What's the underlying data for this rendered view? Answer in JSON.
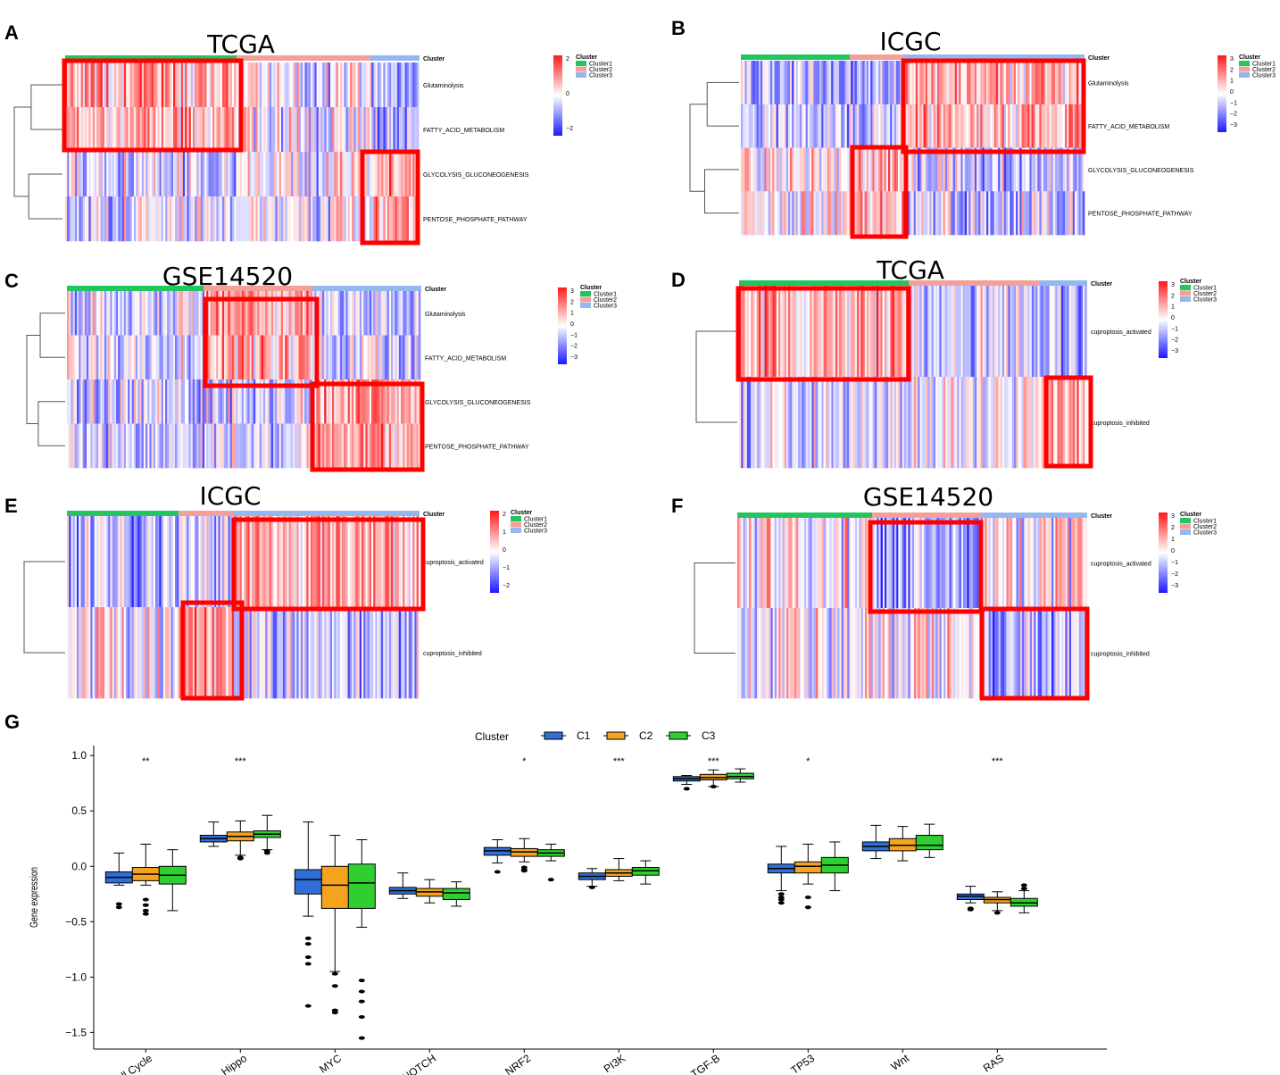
{
  "panels": [
    {
      "id": "A",
      "title": "TCGA",
      "rows": [
        "Glutaminolysis",
        "FATTY_ACID_METABOLISM",
        "GLYCOLYSIS_GLUCONEOGENESIS",
        "PENTOSE_PHOSPHATE_PATHWAY"
      ],
      "cluster_label": "Cluster",
      "legend_title": "Cluster",
      "legend_items": [
        "Cluster1",
        "Cluster2",
        "Cluster3"
      ],
      "scale_ticks": [
        "2",
        "0",
        "−2"
      ]
    },
    {
      "id": "B",
      "title": "ICGC",
      "rows": [
        "Glutaminolysis",
        "FATTY_ACID_METABOLISM",
        "GLYCOLYSIS_GLUCONEOGENESIS",
        "PENTOSE_PHOSPHATE_PATHWAY"
      ],
      "cluster_label": "Cluster",
      "legend_title": "Cluster",
      "legend_items": [
        "Cluster1",
        "Cluster2",
        "Cluster3"
      ],
      "scale_ticks": [
        "3",
        "2",
        "1",
        "0",
        "−1",
        "−2",
        "−3"
      ]
    },
    {
      "id": "C",
      "title": "GSE14520",
      "rows": [
        "Glutaminolysis",
        "FATTY_ACID_METABOLISM",
        "GLYCOLYSIS_GLUCONEOGENESIS",
        "PENTOSE_PHOSPHATE_PATHWAY"
      ],
      "cluster_label": "Cluster",
      "legend_title": "Cluster",
      "legend_items": [
        "Cluster1",
        "Cluster2",
        "Cluster3"
      ],
      "scale_ticks": [
        "3",
        "2",
        "1",
        "0",
        "−1",
        "−2",
        "−3"
      ]
    },
    {
      "id": "D",
      "title": "TCGA",
      "rows": [
        "cuproptosis_activated",
        "cuproptosis_inhibited"
      ],
      "cluster_label": "Cluster",
      "legend_title": "Cluster",
      "legend_items": [
        "Cluster1",
        "Cluster2",
        "Cluster3"
      ],
      "scale_ticks": [
        "3",
        "2",
        "1",
        "0",
        "−1",
        "−2",
        "−3"
      ]
    },
    {
      "id": "E",
      "title": "ICGC",
      "rows": [
        "cuproptosis_activated",
        "cuproptosis_inhibited"
      ],
      "cluster_label": "Cluster",
      "legend_title": "Cluster",
      "legend_items": [
        "Cluster1",
        "Cluster2",
        "Cluster3"
      ],
      "scale_ticks": [
        "2",
        "1",
        "0",
        "−1",
        "−2"
      ]
    },
    {
      "id": "F",
      "title": "GSE14520",
      "rows": [
        "cuproptosis_activated",
        "cuproptosis_inhibited"
      ],
      "cluster_label": "Cluster",
      "legend_title": "Cluster",
      "legend_items": [
        "Cluster1",
        "Cluster2",
        "Cluster3"
      ],
      "scale_ticks": [
        "3",
        "2",
        "1",
        "0",
        "−1",
        "−2",
        "−3"
      ]
    }
  ],
  "colors": {
    "cluster1": "#22c55e",
    "cluster2": "#f4a09a",
    "cluster3": "#93b8f0",
    "heat_high": "#ff1a1a",
    "heat_mid": "#ffffff",
    "heat_low": "#1a1aff",
    "highlight": "#ff0000",
    "c1": "#2f6fd6",
    "c2": "#f5a21f",
    "c3": "#2fcf2f"
  },
  "chart_data": {
    "panel": "G",
    "type": "box",
    "legend_title": "Cluster",
    "series_names": [
      "C1",
      "C2",
      "C3"
    ],
    "ylabel": "Gene expression",
    "ylim": [
      -1.65,
      1.05
    ],
    "yticks": [
      "1.0",
      "0.5",
      "0.0",
      "−0.5",
      "−1.0",
      "−1.5"
    ],
    "categories": [
      "Cell Cycle",
      "Hippo",
      "MYC",
      "NOTCH",
      "NRF2",
      "PI3K",
      "TGF-B",
      "TP53",
      "Wnt",
      "RAS"
    ],
    "significance": [
      "**",
      "***",
      "",
      "",
      "*",
      "***",
      "***",
      "*",
      "",
      "***"
    ],
    "boxes": [
      [
        [
          -0.17,
          -0.15,
          -0.1,
          -0.05,
          0.12
        ],
        [
          -0.17,
          -0.13,
          -0.07,
          -0.01,
          0.2
        ],
        [
          -0.4,
          -0.16,
          -0.08,
          0.0,
          0.15
        ]
      ],
      [
        [
          0.18,
          0.22,
          0.25,
          0.28,
          0.4
        ],
        [
          0.1,
          0.23,
          0.27,
          0.31,
          0.41
        ],
        [
          0.15,
          0.26,
          0.29,
          0.32,
          0.46
        ]
      ],
      [
        [
          -0.45,
          -0.25,
          -0.12,
          -0.03,
          0.4
        ],
        [
          -0.95,
          -0.38,
          -0.17,
          0.0,
          0.28
        ],
        [
          -0.55,
          -0.38,
          -0.15,
          0.02,
          0.24
        ]
      ],
      [
        [
          -0.29,
          -0.25,
          -0.22,
          -0.19,
          -0.06
        ],
        [
          -0.33,
          -0.27,
          -0.23,
          -0.2,
          -0.12
        ],
        [
          -0.36,
          -0.3,
          -0.24,
          -0.2,
          -0.14
        ]
      ],
      [
        [
          0.03,
          0.1,
          0.14,
          0.17,
          0.24
        ],
        [
          0.04,
          0.09,
          0.13,
          0.16,
          0.25
        ],
        [
          0.05,
          0.09,
          0.12,
          0.15,
          0.2
        ]
      ],
      [
        [
          -0.18,
          -0.12,
          -0.09,
          -0.06,
          -0.02
        ],
        [
          -0.13,
          -0.09,
          -0.06,
          -0.03,
          0.07
        ],
        [
          -0.16,
          -0.08,
          -0.04,
          -0.01,
          0.05
        ]
      ],
      [
        [
          0.74,
          0.77,
          0.79,
          0.81,
          0.82
        ],
        [
          0.72,
          0.78,
          0.8,
          0.83,
          0.87
        ],
        [
          0.76,
          0.79,
          0.81,
          0.84,
          0.88
        ]
      ],
      [
        [
          -0.22,
          -0.06,
          -0.02,
          0.02,
          0.18
        ],
        [
          -0.16,
          -0.06,
          0.0,
          0.04,
          0.2
        ],
        [
          -0.22,
          -0.06,
          0.01,
          0.08,
          0.22
        ]
      ],
      [
        [
          0.07,
          0.14,
          0.18,
          0.22,
          0.37
        ],
        [
          0.05,
          0.14,
          0.19,
          0.25,
          0.36
        ],
        [
          0.08,
          0.15,
          0.19,
          0.28,
          0.38
        ]
      ],
      [
        [
          -0.33,
          -0.3,
          -0.27,
          -0.25,
          -0.18
        ],
        [
          -0.4,
          -0.33,
          -0.3,
          -0.28,
          -0.23
        ],
        [
          -0.42,
          -0.36,
          -0.33,
          -0.29,
          -0.22
        ]
      ]
    ],
    "outliers": [
      [
        [
          -0.34,
          -0.37
        ],
        [
          -0.3,
          -0.35,
          -0.4,
          -0.43
        ],
        []
      ],
      [
        [],
        [
          0.08,
          0.07
        ],
        [
          0.12,
          0.14
        ]
      ],
      [
        [
          -0.65,
          -0.7,
          -0.82,
          -0.88,
          -1.26
        ],
        [
          -0.97,
          -1.08,
          -1.3,
          -1.32
        ],
        [
          -1.03,
          -1.13,
          -1.22,
          -1.36,
          -1.55
        ]
      ],
      [
        [],
        [],
        []
      ],
      [
        [
          -0.05
        ],
        [
          -0.01,
          -0.03,
          -0.04
        ],
        [
          -0.12
        ]
      ],
      [
        [
          -0.19
        ],
        [],
        []
      ],
      [
        [
          0.7
        ],
        [
          0.72
        ],
        []
      ],
      [
        [
          -0.25,
          -0.28,
          -0.3,
          -0.33
        ],
        [
          -0.28,
          -0.37
        ],
        []
      ],
      [
        [],
        [],
        []
      ],
      [
        [
          -0.38,
          -0.39
        ],
        [
          -0.42
        ],
        [
          -0.17,
          -0.2
        ]
      ]
    ]
  }
}
